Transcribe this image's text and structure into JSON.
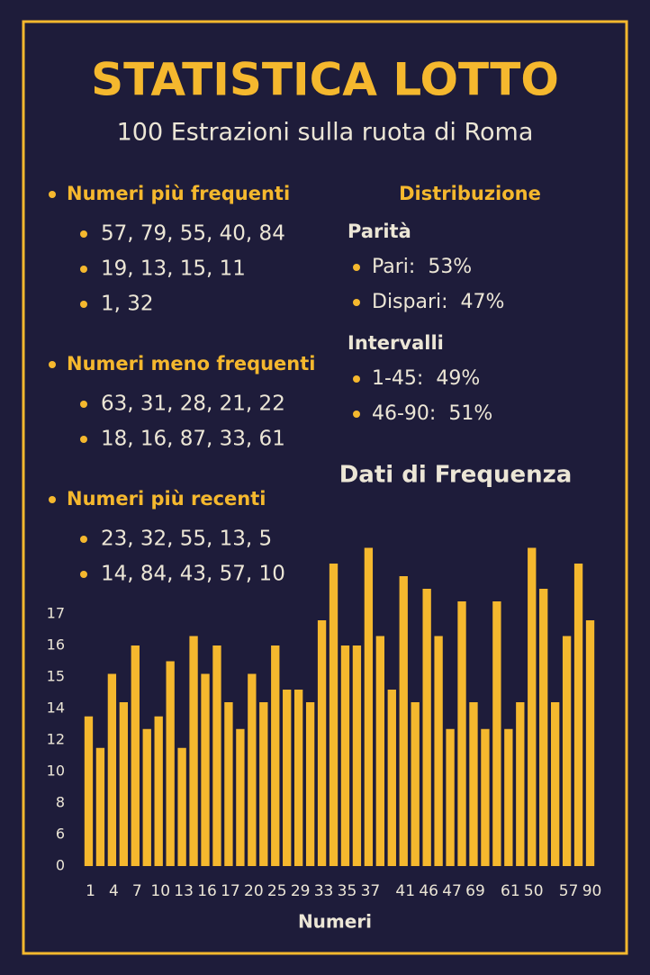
{
  "header": {
    "title": "STATISTICA LOTTO",
    "subtitle": "100 Estrazioni sulla ruota di Roma"
  },
  "sections": [
    {
      "title": "Numeri più frequenti",
      "items": [
        "57, 79, 55, 40, 84",
        "19, 13, 15, 11",
        "1, 32"
      ]
    },
    {
      "title": "Numeri meno frequenti",
      "items": [
        "63, 31, 28, 21, 22",
        "18, 16, 87, 33, 61"
      ]
    },
    {
      "title": "Numeri più recenti",
      "items": [
        "23, 32, 55, 13, 5",
        "14, 84, 43, 57, 10"
      ]
    }
  ],
  "distribution": {
    "title": "Distribuzione",
    "groups": [
      {
        "title": "Parità",
        "items": [
          "Pari:  53%",
          "Dispari:  47%"
        ]
      },
      {
        "title": "Intervalli",
        "items": [
          "1-45:  49%",
          "46-90:  51%"
        ]
      }
    ]
  },
  "chart_data": {
    "type": "bar",
    "title": "Dati di Frequenza",
    "x_label": "Numeri",
    "categories": [
      "1",
      null,
      "4",
      null,
      "7",
      null,
      "10",
      null,
      "13",
      null,
      "16",
      null,
      "17",
      null,
      "20",
      null,
      "25",
      null,
      "29",
      null,
      "33",
      null,
      "35",
      null,
      "37",
      null,
      null,
      "41",
      null,
      "46",
      null,
      "47",
      null,
      "69",
      null,
      null,
      "61",
      null,
      "50",
      null,
      null,
      "57",
      null,
      "90"
    ],
    "values": [
      13.5,
      11.5,
      15.1,
      14.2,
      16,
      12.7,
      13.5,
      15.5,
      11.5,
      16.3,
      15.1,
      16,
      14.2,
      12.7,
      15.1,
      14.2,
      16,
      14.6,
      14.6,
      14.2,
      16.8,
      18.6,
      16,
      16,
      19.1,
      16.3,
      14.6,
      18.2,
      14.2,
      17.8,
      16.3,
      12.7,
      17.4,
      14.2,
      12.7,
      17.4,
      12.7,
      14.2,
      19.1,
      17.8,
      14.2,
      16.3,
      18.6,
      16.8
    ],
    "color": "#f5b82e",
    "ylim": [
      0,
      19.5
    ],
    "yticks": [
      0,
      6,
      8,
      10,
      12,
      14,
      15,
      16,
      17
    ]
  }
}
